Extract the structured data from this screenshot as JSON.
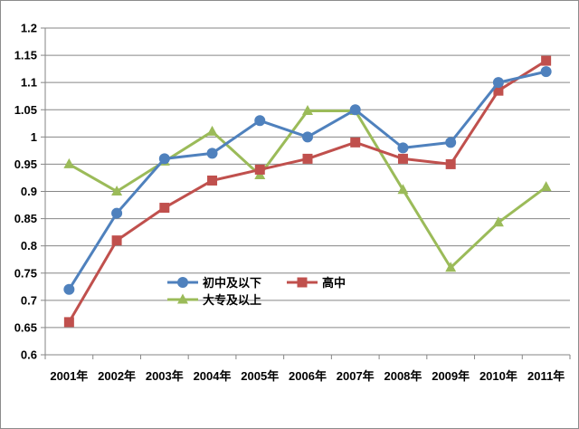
{
  "chart_data": {
    "type": "line",
    "categories": [
      "2001年",
      "2002年",
      "2003年",
      "2004年",
      "2005年",
      "2006年",
      "2007年",
      "2008年",
      "2009年",
      "2010年",
      "2011年"
    ],
    "ylim": [
      0.6,
      1.2
    ],
    "yticks": [
      "0.6",
      "0.65",
      "0.7",
      "0.75",
      "0.8",
      "0.85",
      "0.9",
      "0.95",
      "1",
      "1.05",
      "1.1",
      "1.15",
      "1.2"
    ],
    "grid": "horizontal",
    "legend_position": "lower-center-inside",
    "series": [
      {
        "name": "初中及以下",
        "color": "#4f81bd",
        "marker": "circle",
        "values": [
          0.72,
          0.86,
          0.96,
          0.97,
          1.03,
          1.0,
          1.05,
          0.98,
          0.99,
          1.1,
          1.12
        ]
      },
      {
        "name": "高中",
        "color": "#c0504d",
        "marker": "square",
        "values": [
          0.66,
          0.81,
          0.87,
          0.92,
          0.94,
          0.96,
          0.99,
          0.96,
          0.95,
          1.085,
          1.14
        ]
      },
      {
        "name": "大专及以上",
        "color": "#9bbb59",
        "marker": "triangle",
        "values": [
          0.95,
          0.9,
          0.955,
          1.01,
          0.93,
          1.048,
          1.048,
          0.903,
          0.76,
          0.843,
          0.908
        ]
      }
    ]
  }
}
